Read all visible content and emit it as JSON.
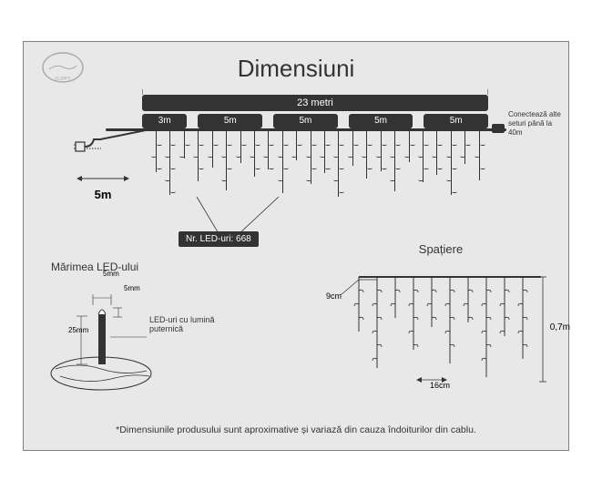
{
  "title": "Dimensiuni",
  "total_length": "23 metri",
  "segments": [
    "3m",
    "5m",
    "5m",
    "5m",
    "5m"
  ],
  "lead_cable": "5m",
  "connect_note": "Conectează alte seturi până la 40m",
  "nr_leds": "Nr. LED-uri: 668",
  "led_size_title": "Mărimea LED-ului",
  "led_dim_top": "5mm",
  "led_dim_side": "5mm",
  "led_dim_height": "25mm",
  "led_note": "LED-uri cu lumină puternică",
  "spacing_title": "Spațiere",
  "spacing_horizontal": "9cm",
  "spacing_strand": "16cm",
  "spacing_drop": "0,7m",
  "footnote": "*Dimensiunile produsului sunt aproximative și variază din cauza îndoiturilor din cablu.",
  "colors": {
    "bg": "#e8e8e8",
    "dark": "#333333",
    "border": "#808080"
  },
  "strand_heights": [
    45,
    70,
    30,
    55,
    40,
    65,
    35,
    50,
    42,
    68,
    32,
    58,
    46,
    72,
    38,
    52,
    44,
    66,
    34,
    56,
    48,
    70,
    36,
    54
  ]
}
